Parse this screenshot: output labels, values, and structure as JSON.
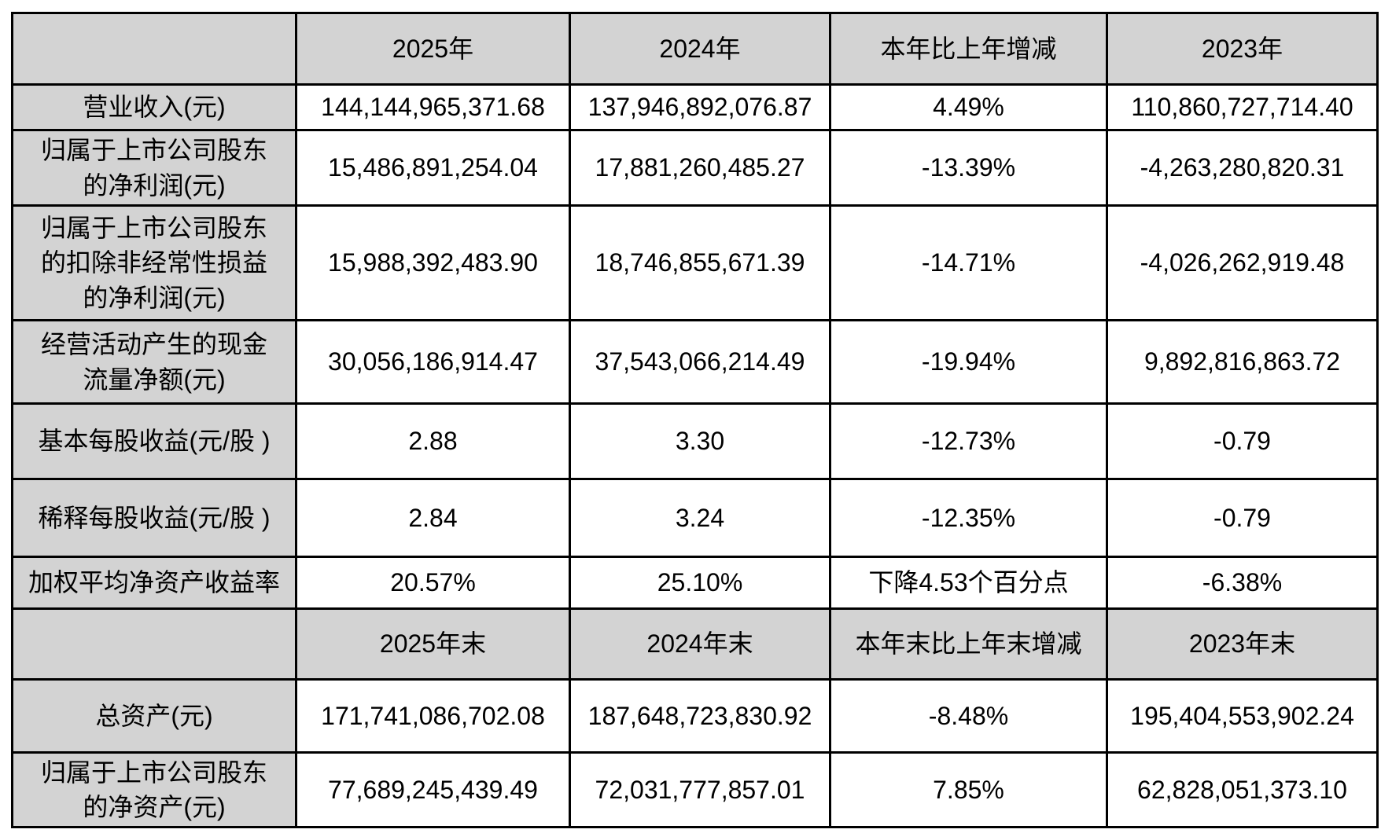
{
  "table": {
    "columns": {
      "annual": [
        "",
        "2025年",
        "2024年",
        "本年比上年增减",
        "2023年"
      ],
      "year_end": [
        "",
        "2025年末",
        "2024年末",
        "本年末比上年末增减",
        "2023年末"
      ]
    },
    "annual_rows": [
      {
        "label": "营业收入(元)",
        "y2025": "144,144,965,371.68",
        "y2024": "137,946,892,076.87",
        "change": "4.49%",
        "y2023": "110,860,727,714.40"
      },
      {
        "label": "归属于上市公司股东\n的净利润(元)",
        "y2025": "15,486,891,254.04",
        "y2024": "17,881,260,485.27",
        "change": "-13.39%",
        "y2023": "-4,263,280,820.31"
      },
      {
        "label": "归属于上市公司股东\n的扣除非经常性损益\n的净利润(元)",
        "y2025": "15,988,392,483.90",
        "y2024": "18,746,855,671.39",
        "change": "-14.71%",
        "y2023": "-4,026,262,919.48"
      },
      {
        "label": "经营活动产生的现金\n流量净额(元)",
        "y2025": "30,056,186,914.47",
        "y2024": "37,543,066,214.49",
        "change": "-19.94%",
        "y2023": "9,892,816,863.72"
      },
      {
        "label": "基本每股收益(元/股 )",
        "y2025": "2.88",
        "y2024": "3.30",
        "change": "-12.73%",
        "y2023": "-0.79"
      },
      {
        "label": "稀释每股收益(元/股 )",
        "y2025": "2.84",
        "y2024": "3.24",
        "change": "-12.35%",
        "y2023": "-0.79"
      },
      {
        "label": "加权平均净资产收益率",
        "y2025": "20.57%",
        "y2024": "25.10%",
        "change": "下降4.53个百分点",
        "y2023": "-6.38%"
      }
    ],
    "year_end_rows": [
      {
        "label": "总资产(元)",
        "y2025": "171,741,086,702.08",
        "y2024": "187,648,723,830.92",
        "change": "-8.48%",
        "y2023": "195,404,553,902.24"
      },
      {
        "label": "归属于上市公司股东\n的净资产(元)",
        "y2025": "77,689,245,439.49",
        "y2024": "72,031,777,857.01",
        "change": "7.85%",
        "y2023": "62,828,051,373.10"
      }
    ],
    "colors": {
      "header_bg": "#d3d3d3",
      "label_bg": "#d3d3d3",
      "border": "#000000",
      "text": "#000000",
      "value_bg": "#ffffff"
    }
  }
}
